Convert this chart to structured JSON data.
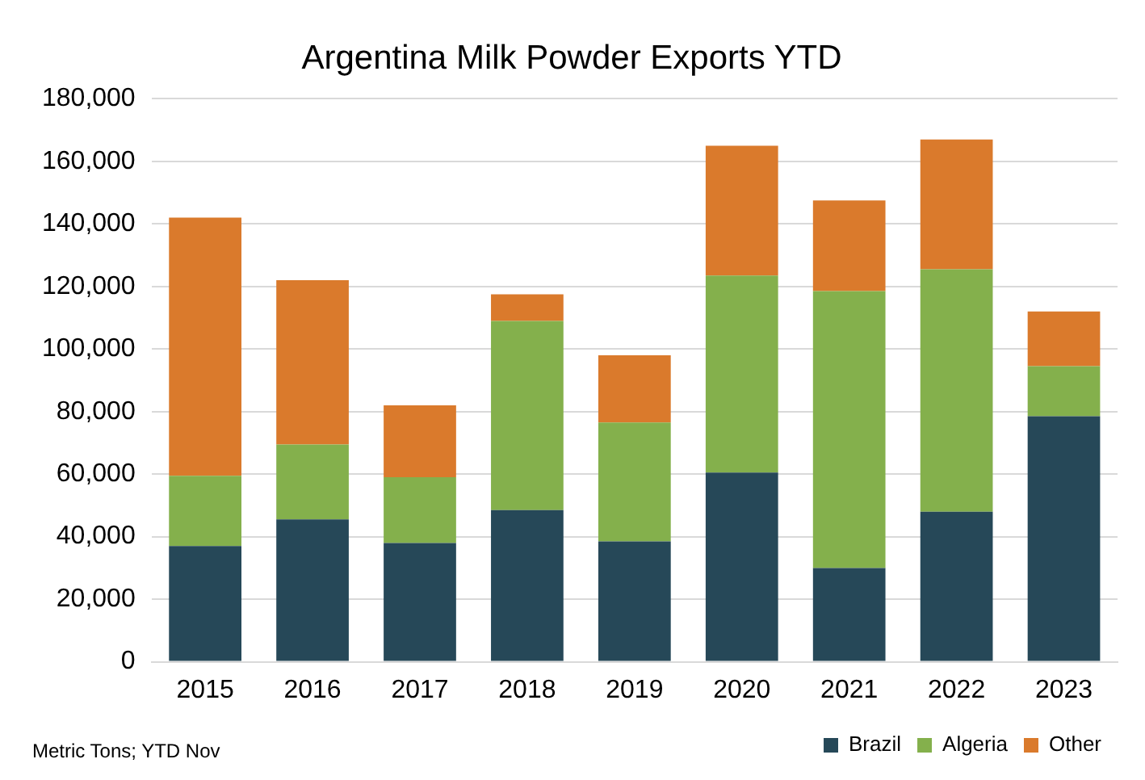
{
  "chart_data": {
    "type": "bar",
    "title": "Argentina Milk Powder Exports YTD",
    "categories": [
      "2015",
      "2016",
      "2017",
      "2018",
      "2019",
      "2020",
      "2021",
      "2022",
      "2023"
    ],
    "stacked": true,
    "series": [
      {
        "name": "Brazil",
        "color": "#264858",
        "values": [
          37000,
          45500,
          38000,
          48500,
          38500,
          60500,
          30000,
          48000,
          78500
        ]
      },
      {
        "name": "Algeria",
        "color": "#84b04c",
        "values": [
          22500,
          24000,
          21000,
          60500,
          38000,
          63000,
          88500,
          77500,
          16000
        ]
      },
      {
        "name": "Other",
        "color": "#da7a2c",
        "values": [
          82500,
          52500,
          23000,
          8500,
          21500,
          41500,
          29000,
          41500,
          17500
        ]
      }
    ],
    "ylim": [
      0,
      180000
    ],
    "yticks": [
      0,
      {
        "value": 20000,
        "label": "20,000"
      },
      {
        "value": 40000,
        "label": "40,000"
      },
      {
        "value": 60000,
        "label": "60,000"
      },
      {
        "value": 80000,
        "label": "80,000"
      },
      {
        "value": 100000,
        "label": "100,000"
      },
      {
        "value": 120000,
        "label": "120,000"
      },
      {
        "value": 140000,
        "label": "140,000"
      },
      {
        "value": 160000,
        "label": "160,000"
      },
      {
        "value": 180000,
        "label": "180,000"
      }
    ],
    "grid": "y",
    "legend": "bottom right",
    "annotations": [
      "Metric Tons; YTD Nov"
    ]
  }
}
